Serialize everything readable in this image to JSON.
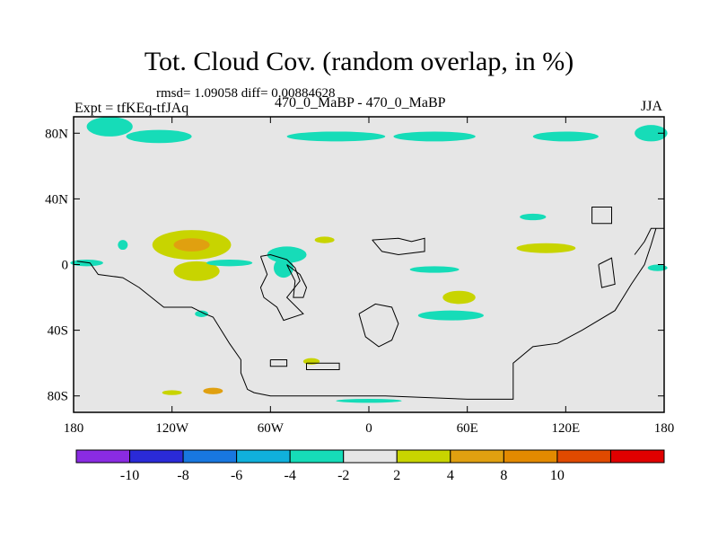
{
  "header": {
    "title": "Tot. Cloud Cov. (random overlap, in %)",
    "stats": "rmsd= 1.09058 diff= 0.00884628",
    "left_label": "Expt = tfKEq-tfJAq",
    "center_label": "470_0_MaBP - 470_0_MaBP",
    "right_label": "JJA"
  },
  "colors": {
    "background_field": "#e6e6e6",
    "land_outline": "#000000"
  },
  "chart_data": {
    "type": "heatmap",
    "title": "Tot. Cloud Cov. (random overlap, in %)",
    "x_ticks": [
      {
        "value": -180,
        "label": "180"
      },
      {
        "value": -120,
        "label": "120W"
      },
      {
        "value": -60,
        "label": "60W"
      },
      {
        "value": 0,
        "label": "0"
      },
      {
        "value": 60,
        "label": "60E"
      },
      {
        "value": 120,
        "label": "120E"
      },
      {
        "value": 180,
        "label": "180"
      }
    ],
    "y_ticks": [
      {
        "value": 80,
        "label": "80N"
      },
      {
        "value": 40,
        "label": "40N"
      },
      {
        "value": 0,
        "label": "0"
      },
      {
        "value": -40,
        "label": "40S"
      },
      {
        "value": -80,
        "label": "80S"
      }
    ],
    "xlim": [
      -180,
      180
    ],
    "ylim": [
      -90,
      90
    ],
    "colorbar": {
      "bins": [
        {
          "color": "#8a2be2"
        },
        {
          "color": "#2a2ad8"
        },
        {
          "color": "#1877e0"
        },
        {
          "color": "#10b0dc"
        },
        {
          "color": "#16dcb8"
        },
        {
          "color": "#e6e6e6"
        },
        {
          "color": "#c8d400"
        },
        {
          "color": "#e0a010"
        },
        {
          "color": "#e38a00"
        },
        {
          "color": "#e04a00"
        },
        {
          "color": "#e00000"
        }
      ],
      "labels": [
        "-10",
        "-8",
        "-6",
        "-4",
        "-2",
        "2",
        "4",
        "8",
        "10"
      ]
    },
    "anomalies": [
      {
        "lon": -158,
        "lat": 84,
        "dlon": 14,
        "dlat": 6,
        "color": "#16dcb8"
      },
      {
        "lon": -128,
        "lat": 78,
        "dlon": 20,
        "dlat": 4,
        "color": "#16dcb8"
      },
      {
        "lon": -20,
        "lat": 78,
        "dlon": 30,
        "dlat": 3,
        "color": "#16dcb8"
      },
      {
        "lon": 40,
        "lat": 78,
        "dlon": 25,
        "dlat": 3,
        "color": "#16dcb8"
      },
      {
        "lon": 120,
        "lat": 78,
        "dlon": 20,
        "dlat": 3,
        "color": "#16dcb8"
      },
      {
        "lon": 172,
        "lat": 80,
        "dlon": 10,
        "dlat": 5,
        "color": "#16dcb8"
      },
      {
        "lon": -108,
        "lat": 12,
        "dlon": 24,
        "dlat": 9,
        "color": "#c8d400"
      },
      {
        "lon": -108,
        "lat": 12,
        "dlon": 11,
        "dlat": 4,
        "color": "#e0a010"
      },
      {
        "lon": -105,
        "lat": -4,
        "dlon": 14,
        "dlat": 6,
        "color": "#c8d400"
      },
      {
        "lon": -50,
        "lat": 6,
        "dlon": 12,
        "dlat": 5,
        "color": "#16dcb8"
      },
      {
        "lon": -52,
        "lat": -2,
        "dlon": 6,
        "dlat": 6,
        "color": "#16dcb8"
      },
      {
        "lon": -172,
        "lat": 1,
        "dlon": 10,
        "dlat": 2,
        "color": "#16dcb8"
      },
      {
        "lon": -85,
        "lat": 1,
        "dlon": 14,
        "dlat": 2,
        "color": "#16dcb8"
      },
      {
        "lon": -27,
        "lat": 15,
        "dlon": 6,
        "dlat": 2,
        "color": "#c8d400"
      },
      {
        "lon": 40,
        "lat": -3,
        "dlon": 15,
        "dlat": 2,
        "color": "#16dcb8"
      },
      {
        "lon": 55,
        "lat": -20,
        "dlon": 10,
        "dlat": 4,
        "color": "#c8d400"
      },
      {
        "lon": 50,
        "lat": -31,
        "dlon": 20,
        "dlat": 3,
        "color": "#16dcb8"
      },
      {
        "lon": 108,
        "lat": 10,
        "dlon": 18,
        "dlat": 3,
        "color": "#c8d400"
      },
      {
        "lon": 100,
        "lat": 29,
        "dlon": 8,
        "dlat": 2,
        "color": "#16dcb8"
      },
      {
        "lon": 176,
        "lat": -2,
        "dlon": 6,
        "dlat": 2,
        "color": "#16dcb8"
      },
      {
        "lon": -150,
        "lat": 12,
        "dlon": 3,
        "dlat": 3,
        "color": "#16dcb8"
      },
      {
        "lon": -102,
        "lat": -30,
        "dlon": 4,
        "dlat": 2,
        "color": "#16dcb8"
      },
      {
        "lon": -35,
        "lat": -59,
        "dlon": 5,
        "dlat": 2,
        "color": "#c8d400"
      },
      {
        "lon": -120,
        "lat": -78,
        "dlon": 6,
        "dlat": 1.5,
        "color": "#c8d400"
      },
      {
        "lon": -95,
        "lat": -77,
        "dlon": 6,
        "dlat": 2,
        "color": "#e0a010"
      },
      {
        "lon": 0,
        "lat": -83,
        "dlon": 20,
        "dlat": 1.2,
        "color": "#16dcb8"
      }
    ],
    "coastlines": [
      [
        [
          -178,
          2
        ],
        [
          -170,
          1
        ],
        [
          -165,
          -6
        ],
        [
          -150,
          -8
        ],
        [
          -140,
          -14
        ],
        [
          -125,
          -26
        ],
        [
          -108,
          -26
        ],
        [
          -100,
          -30
        ],
        [
          -95,
          -32
        ],
        [
          -85,
          -48
        ],
        [
          -78,
          -58
        ],
        [
          -78,
          -66
        ],
        [
          -74,
          -76
        ],
        [
          -70,
          -78
        ],
        [
          -60,
          -80
        ],
        [
          -30,
          -80
        ],
        [
          10,
          -80
        ],
        [
          60,
          -82
        ],
        [
          88,
          -82
        ],
        [
          88,
          -60
        ],
        [
          100,
          -50
        ],
        [
          115,
          -48
        ],
        [
          130,
          -40
        ],
        [
          150,
          -28
        ],
        [
          155,
          -20
        ],
        [
          160,
          -12
        ],
        [
          168,
          0
        ],
        [
          172,
          12
        ],
        [
          175,
          22
        ]
      ],
      [
        [
          -66,
          5
        ],
        [
          -62,
          -6
        ],
        [
          -66,
          -14
        ],
        [
          -64,
          -20
        ],
        [
          -56,
          -26
        ],
        [
          -52,
          -34
        ],
        [
          -40,
          -30
        ],
        [
          -50,
          -20
        ],
        [
          -42,
          -10
        ],
        [
          -45,
          -2
        ],
        [
          -50,
          3
        ],
        [
          -60,
          6
        ],
        [
          -66,
          5
        ]
      ],
      [
        [
          -50,
          0
        ],
        [
          -45,
          -10
        ],
        [
          -46,
          -20
        ],
        [
          -40,
          -20
        ],
        [
          -38,
          -14
        ],
        [
          -42,
          -6
        ],
        [
          -50,
          0
        ]
      ],
      [
        [
          2,
          15
        ],
        [
          18,
          16
        ],
        [
          26,
          14
        ],
        [
          34,
          16
        ],
        [
          34,
          8
        ],
        [
          18,
          6
        ],
        [
          8,
          8
        ],
        [
          2,
          15
        ]
      ],
      [
        [
          -6,
          -30
        ],
        [
          4,
          -24
        ],
        [
          14,
          -26
        ],
        [
          18,
          -36
        ],
        [
          14,
          -46
        ],
        [
          6,
          -50
        ],
        [
          -2,
          -44
        ],
        [
          -6,
          -30
        ]
      ],
      [
        [
          136,
          25
        ],
        [
          148,
          25
        ],
        [
          148,
          35
        ],
        [
          136,
          35
        ],
        [
          136,
          25
        ]
      ],
      [
        [
          140,
          0
        ],
        [
          148,
          4
        ],
        [
          150,
          -12
        ],
        [
          142,
          -14
        ],
        [
          140,
          0
        ]
      ],
      [
        [
          162,
          6
        ],
        [
          168,
          14
        ],
        [
          172,
          22
        ],
        [
          180,
          22
        ]
      ],
      [
        [
          -38,
          -60
        ],
        [
          -18,
          -60
        ],
        [
          -18,
          -64
        ],
        [
          -38,
          -64
        ],
        [
          -38,
          -60
        ]
      ],
      [
        [
          -60,
          -58
        ],
        [
          -50,
          -58
        ],
        [
          -50,
          -62
        ],
        [
          -60,
          -62
        ],
        [
          -60,
          -58
        ]
      ]
    ]
  }
}
